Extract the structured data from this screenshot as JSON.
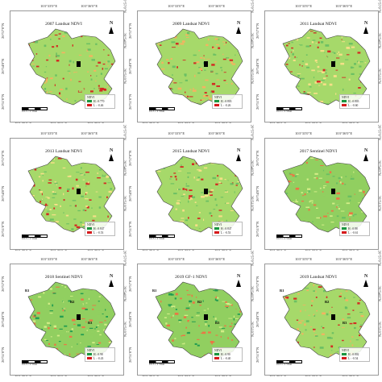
{
  "ticks": {
    "top": [
      "103°33'0\"E",
      "103°36'0\"E"
    ],
    "bottom": [
      "103°30'0\"E",
      "103°33'0\"E",
      "103°36'0\"E"
    ],
    "left": [
      "26°57'0\"N",
      "26°54'0\"N",
      "26°51'0\"N"
    ],
    "right": [
      "26°57'0\"N",
      "26°54'0\"N",
      "26°51'0\"N"
    ]
  },
  "legend_title": "NDVI",
  "scale_label": "0 0.5 1 2 3 Km",
  "panels": [
    {
      "title": "2007 Landsat NDVI",
      "legend_high": "H : 0.770",
      "legend_low": "L : -0.46",
      "colors": [
        "#d7191c",
        "#fdae61",
        "#a6d96a",
        "#66bd63"
      ]
    },
    {
      "title": "2009 Landsat NDVI",
      "legend_high": "H : 0.803",
      "legend_low": "L : -0.26",
      "colors": [
        "#d7191c",
        "#fdae61",
        "#a6d96a",
        "#66bd63"
      ]
    },
    {
      "title": "2011 Landsat NDVI",
      "legend_high": "H : 0.803",
      "legend_low": "L : -0.60",
      "colors": [
        "#d7191c",
        "#fee08b",
        "#a6d96a",
        "#66bd63"
      ]
    },
    {
      "title": "2013 Landsat NDVI",
      "legend_high": "H : 0.847",
      "legend_low": "L : -0.53",
      "colors": [
        "#d7191c",
        "#fee08b",
        "#a6d96a",
        "#66bd63"
      ]
    },
    {
      "title": "2015 Landsat NDVI",
      "legend_high": "H : 0.847",
      "legend_low": "L : -0.53",
      "colors": [
        "#d7191c",
        "#fee08b",
        "#a6d96a",
        "#66bd63"
      ]
    },
    {
      "title": "2017 Sentinel NDVI",
      "legend_high": "H : 0.88",
      "legend_low": "L : -0.61",
      "colors": [
        "#f46d43",
        "#d9ef8b",
        "#91cf60",
        "#66bd63"
      ]
    },
    {
      "title": "2018 Sentinel NDVI",
      "legend_high": "H : 0.98",
      "legend_low": "L : -0.43",
      "colors": [
        "#f46d43",
        "#d9ef8b",
        "#91cf60",
        "#1a9850"
      ]
    },
    {
      "title": "2019 GF-1 NDVI",
      "legend_high": "H : 0.90",
      "legend_low": "L : -0.40",
      "colors": [
        "#f46d43",
        "#d9ef8b",
        "#91cf60",
        "#1a9850"
      ]
    },
    {
      "title": "2019 Landsat NDVI",
      "legend_high": "H : 0.802",
      "legend_low": "L : -0.54",
      "colors": [
        "#d7191c",
        "#fdae61",
        "#a6d96a",
        "#66bd63"
      ]
    }
  ],
  "map_labels": {
    "r1": "R1",
    "r2": "R2",
    "r3": "R3"
  }
}
